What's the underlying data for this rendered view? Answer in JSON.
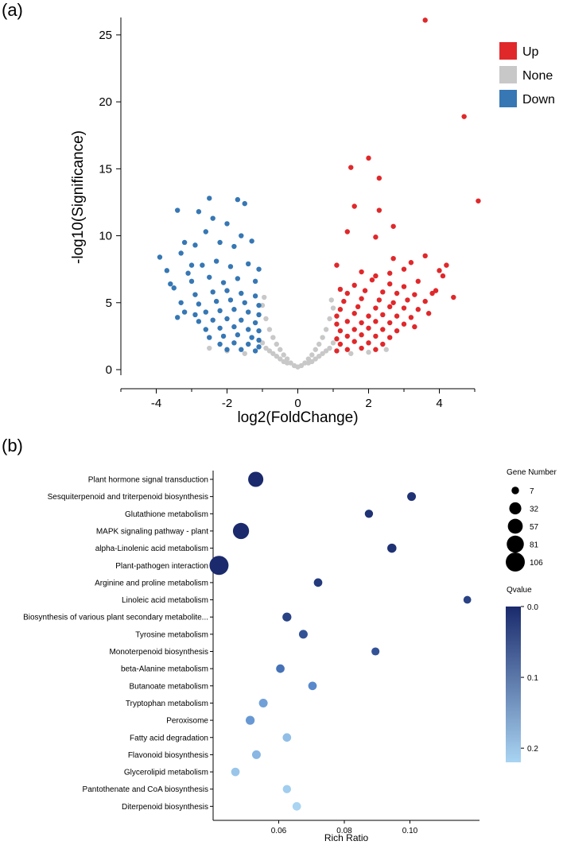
{
  "panel_a": {
    "label": "(a)"
  },
  "panel_b": {
    "label": "(b)"
  },
  "colors": {
    "up": "#e0282b",
    "none": "#c8c8c8",
    "down": "#3677b4",
    "q_low": "#1a2a6c",
    "q_high": "#a9d4f2"
  },
  "chart_data": [
    {
      "type": "scatter",
      "panel": "(a)",
      "xlabel": "log2(FoldChange)",
      "ylabel": "-log10(Significance)",
      "xlim": [
        -5,
        5
      ],
      "ylim": [
        0,
        26
      ],
      "xticks": [
        -4,
        -2,
        0,
        2,
        4
      ],
      "yticks": [
        0,
        5,
        10,
        15,
        20,
        25
      ],
      "legend": [
        "Up",
        "None",
        "Down"
      ],
      "legend_position": "right",
      "series": [
        {
          "name": "Up",
          "color": "#e0282b",
          "points": [
            [
              3.6,
              26.1
            ],
            [
              4.7,
              18.9
            ],
            [
              5.1,
              12.6
            ],
            [
              2.0,
              15.8
            ],
            [
              1.5,
              15.1
            ],
            [
              2.3,
              14.3
            ],
            [
              1.6,
              12.2
            ],
            [
              2.3,
              11.9
            ],
            [
              2.7,
              10.7
            ],
            [
              1.4,
              10.3
            ],
            [
              2.2,
              9.9
            ],
            [
              3.6,
              8.5
            ],
            [
              2.7,
              8.3
            ],
            [
              4.2,
              7.8
            ],
            [
              4.0,
              7.4
            ],
            [
              4.1,
              7.0
            ],
            [
              3.2,
              8.0
            ],
            [
              3.0,
              7.5
            ],
            [
              2.6,
              7.2
            ],
            [
              2.2,
              7.0
            ],
            [
              1.8,
              7.3
            ],
            [
              1.1,
              7.8
            ],
            [
              3.4,
              6.6
            ],
            [
              3.0,
              6.2
            ],
            [
              2.6,
              6.4
            ],
            [
              2.1,
              6.7
            ],
            [
              1.6,
              6.3
            ],
            [
              1.2,
              6.0
            ],
            [
              3.8,
              5.7
            ],
            [
              3.3,
              5.6
            ],
            [
              2.8,
              5.7
            ],
            [
              2.4,
              5.8
            ],
            [
              1.9,
              5.9
            ],
            [
              1.4,
              5.7
            ],
            [
              3.6,
              5.1
            ],
            [
              3.1,
              5.2
            ],
            [
              2.7,
              5.0
            ],
            [
              2.3,
              5.2
            ],
            [
              1.8,
              5.3
            ],
            [
              1.3,
              5.1
            ],
            [
              3.4,
              4.5
            ],
            [
              3.0,
              4.6
            ],
            [
              2.6,
              4.7
            ],
            [
              2.2,
              4.6
            ],
            [
              1.7,
              4.7
            ],
            [
              1.2,
              4.5
            ],
            [
              3.2,
              3.9
            ],
            [
              2.8,
              4.0
            ],
            [
              2.4,
              4.1
            ],
            [
              2.0,
              4.0
            ],
            [
              1.6,
              4.2
            ],
            [
              1.1,
              4.0
            ],
            [
              3.0,
              3.4
            ],
            [
              2.6,
              3.5
            ],
            [
              2.2,
              3.6
            ],
            [
              1.8,
              3.5
            ],
            [
              1.4,
              3.6
            ],
            [
              1.1,
              3.4
            ],
            [
              2.8,
              2.9
            ],
            [
              2.4,
              3.0
            ],
            [
              2.0,
              3.1
            ],
            [
              1.6,
              3.0
            ],
            [
              1.2,
              2.9
            ],
            [
              2.6,
              2.4
            ],
            [
              2.2,
              2.5
            ],
            [
              1.8,
              2.6
            ],
            [
              1.4,
              2.5
            ],
            [
              1.1,
              2.3
            ],
            [
              2.4,
              1.9
            ],
            [
              2.0,
              2.0
            ],
            [
              1.6,
              2.1
            ],
            [
              1.2,
              1.9
            ],
            [
              2.2,
              1.5
            ],
            [
              1.8,
              1.6
            ],
            [
              1.4,
              1.5
            ],
            [
              1.1,
              1.4
            ],
            [
              3.9,
              5.9
            ],
            [
              4.4,
              5.4
            ],
            [
              3.7,
              4.2
            ],
            [
              3.3,
              3.2
            ]
          ]
        },
        {
          "name": "None",
          "color": "#c8c8c8",
          "points": [
            [
              -1.0,
              4.8
            ],
            [
              -0.9,
              3.8
            ],
            [
              -0.8,
              3.0
            ],
            [
              -0.7,
              2.4
            ],
            [
              -0.6,
              1.9
            ],
            [
              -0.5,
              1.5
            ],
            [
              -0.4,
              1.1
            ],
            [
              -0.3,
              0.8
            ],
            [
              -0.2,
              0.5
            ],
            [
              -0.1,
              0.3
            ],
            [
              0.0,
              0.2
            ],
            [
              0.1,
              0.3
            ],
            [
              0.2,
              0.5
            ],
            [
              0.3,
              0.8
            ],
            [
              0.4,
              1.1
            ],
            [
              0.5,
              1.5
            ],
            [
              0.6,
              1.9
            ],
            [
              0.7,
              2.4
            ],
            [
              0.8,
              3.0
            ],
            [
              0.9,
              3.8
            ],
            [
              1.0,
              4.6
            ],
            [
              -1.0,
              2.0
            ],
            [
              -0.9,
              1.6
            ],
            [
              -0.8,
              1.4
            ],
            [
              -0.7,
              1.2
            ],
            [
              -0.6,
              1.0
            ],
            [
              -0.5,
              0.8
            ],
            [
              -0.4,
              0.6
            ],
            [
              -0.3,
              0.5
            ],
            [
              0.3,
              0.5
            ],
            [
              0.4,
              0.6
            ],
            [
              0.5,
              0.8
            ],
            [
              0.6,
              1.0
            ],
            [
              0.7,
              1.2
            ],
            [
              0.8,
              1.4
            ],
            [
              0.9,
              1.6
            ],
            [
              1.0,
              2.0
            ],
            [
              -1.5,
              1.2
            ],
            [
              -2.0,
              1.4
            ],
            [
              -2.5,
              1.6
            ],
            [
              1.5,
              1.2
            ],
            [
              2.0,
              1.3
            ],
            [
              2.5,
              1.5
            ],
            [
              -0.95,
              5.4
            ],
            [
              0.95,
              5.2
            ]
          ]
        },
        {
          "name": "Down",
          "color": "#3677b4",
          "points": [
            [
              -3.9,
              8.4
            ],
            [
              -3.4,
              11.9
            ],
            [
              -3.6,
              6.4
            ],
            [
              -3.2,
              9.5
            ],
            [
              -3.0,
              7.8
            ],
            [
              -2.5,
              12.8
            ],
            [
              -2.4,
              11.3
            ],
            [
              -1.7,
              12.7
            ],
            [
              -1.5,
              12.4
            ],
            [
              -2.8,
              11.8
            ],
            [
              -2.0,
              10.9
            ],
            [
              -2.6,
              10.3
            ],
            [
              -1.6,
              10.0
            ],
            [
              -3.3,
              8.7
            ],
            [
              -2.9,
              9.3
            ],
            [
              -2.2,
              9.5
            ],
            [
              -1.8,
              9.2
            ],
            [
              -1.3,
              9.6
            ],
            [
              -3.1,
              7.2
            ],
            [
              -2.7,
              7.8
            ],
            [
              -2.3,
              8.1
            ],
            [
              -1.9,
              7.7
            ],
            [
              -1.4,
              7.9
            ],
            [
              -1.1,
              7.5
            ],
            [
              -3.5,
              6.1
            ],
            [
              -3.0,
              6.6
            ],
            [
              -2.5,
              6.9
            ],
            [
              -2.1,
              6.5
            ],
            [
              -1.7,
              6.8
            ],
            [
              -1.2,
              6.6
            ],
            [
              -2.9,
              5.6
            ],
            [
              -2.4,
              5.8
            ],
            [
              -2.0,
              5.9
            ],
            [
              -1.6,
              5.7
            ],
            [
              -1.2,
              5.5
            ],
            [
              -3.3,
              5.0
            ],
            [
              -2.8,
              4.9
            ],
            [
              -2.3,
              5.1
            ],
            [
              -1.9,
              5.2
            ],
            [
              -1.5,
              5.0
            ],
            [
              -1.1,
              4.8
            ],
            [
              -2.6,
              4.3
            ],
            [
              -2.2,
              4.4
            ],
            [
              -1.8,
              4.5
            ],
            [
              -1.4,
              4.3
            ],
            [
              -1.1,
              4.1
            ],
            [
              -2.8,
              3.6
            ],
            [
              -2.4,
              3.7
            ],
            [
              -2.0,
              3.8
            ],
            [
              -1.6,
              3.7
            ],
            [
              -1.2,
              3.5
            ],
            [
              -2.6,
              3.0
            ],
            [
              -2.2,
              3.1
            ],
            [
              -1.8,
              3.2
            ],
            [
              -1.4,
              3.0
            ],
            [
              -1.1,
              2.9
            ],
            [
              -2.5,
              2.4
            ],
            [
              -2.1,
              2.5
            ],
            [
              -1.7,
              2.6
            ],
            [
              -1.3,
              2.4
            ],
            [
              -1.1,
              2.2
            ],
            [
              -2.2,
              1.9
            ],
            [
              -1.8,
              2.0
            ],
            [
              -1.4,
              1.9
            ],
            [
              -1.1,
              1.7
            ],
            [
              -2.0,
              1.5
            ],
            [
              -1.6,
              1.5
            ],
            [
              -1.2,
              1.4
            ],
            [
              -3.7,
              7.4
            ],
            [
              -3.2,
              4.3
            ],
            [
              -2.9,
              4.1
            ],
            [
              -3.4,
              3.9
            ]
          ]
        }
      ]
    },
    {
      "type": "scatter",
      "panel": "(b)",
      "xlabel": "Rich Ratio",
      "ylabel": "",
      "xlim": [
        0.04,
        0.12
      ],
      "xticks": [
        0.06,
        0.08,
        0.1
      ],
      "xtick_labels": [
        "0.06",
        "0.08",
        "0.10"
      ],
      "legend_size_title": "Gene Number",
      "size_legend": [
        7,
        32,
        57,
        81,
        106
      ],
      "legend_color_title": "Qvalue",
      "color_scale": {
        "min": 0.0,
        "max": 0.22,
        "ticks": [
          0.0,
          0.1,
          0.2
        ],
        "tick_labels": [
          "0.0",
          "0.1",
          "0.2"
        ],
        "low_color": "#1a2a6c",
        "high_color": "#a9d4f2"
      },
      "legend_position": "right",
      "categories": [
        "Plant hormone signal transduction",
        "Sesquiterpenoid and triterpenoid biosynthesis",
        "Glutathione metabolism",
        "MAPK signaling pathway - plant",
        "alpha-Linolenic acid metabolism",
        "Plant-pathogen interaction",
        "Arginine and proline metabolism",
        "Linoleic acid metabolism",
        "Biosynthesis of various plant secondary metabolite...",
        "Tyrosine metabolism",
        "Monoterpenoid biosynthesis",
        "beta-Alanine metabolism",
        "Butanoate metabolism",
        "Tryptophan metabolism",
        "Peroxisome",
        "Fatty acid degradation",
        "Flavonoid biosynthesis",
        "Glycerolipid metabolism",
        "Pantothenate and CoA biosynthesis",
        "Diterpenoid biosynthesis"
      ],
      "rich_ratio": [
        0.053,
        0.1005,
        0.0875,
        0.0485,
        0.0945,
        0.0418,
        0.072,
        0.1175,
        0.0625,
        0.0675,
        0.0895,
        0.0605,
        0.0703,
        0.0553,
        0.0513,
        0.0625,
        0.0532,
        0.0468,
        0.0625,
        0.0655
      ],
      "gene_number": [
        60,
        12,
        10,
        70,
        14,
        106,
        11,
        8,
        13,
        12,
        9,
        11,
        11,
        12,
        13,
        11,
        12,
        11,
        10,
        11
      ],
      "qvalue": [
        0.0,
        0.01,
        0.01,
        0.0,
        0.01,
        0.0,
        0.02,
        0.03,
        0.03,
        0.05,
        0.05,
        0.09,
        0.12,
        0.15,
        0.14,
        0.19,
        0.18,
        0.2,
        0.21,
        0.22
      ]
    }
  ]
}
